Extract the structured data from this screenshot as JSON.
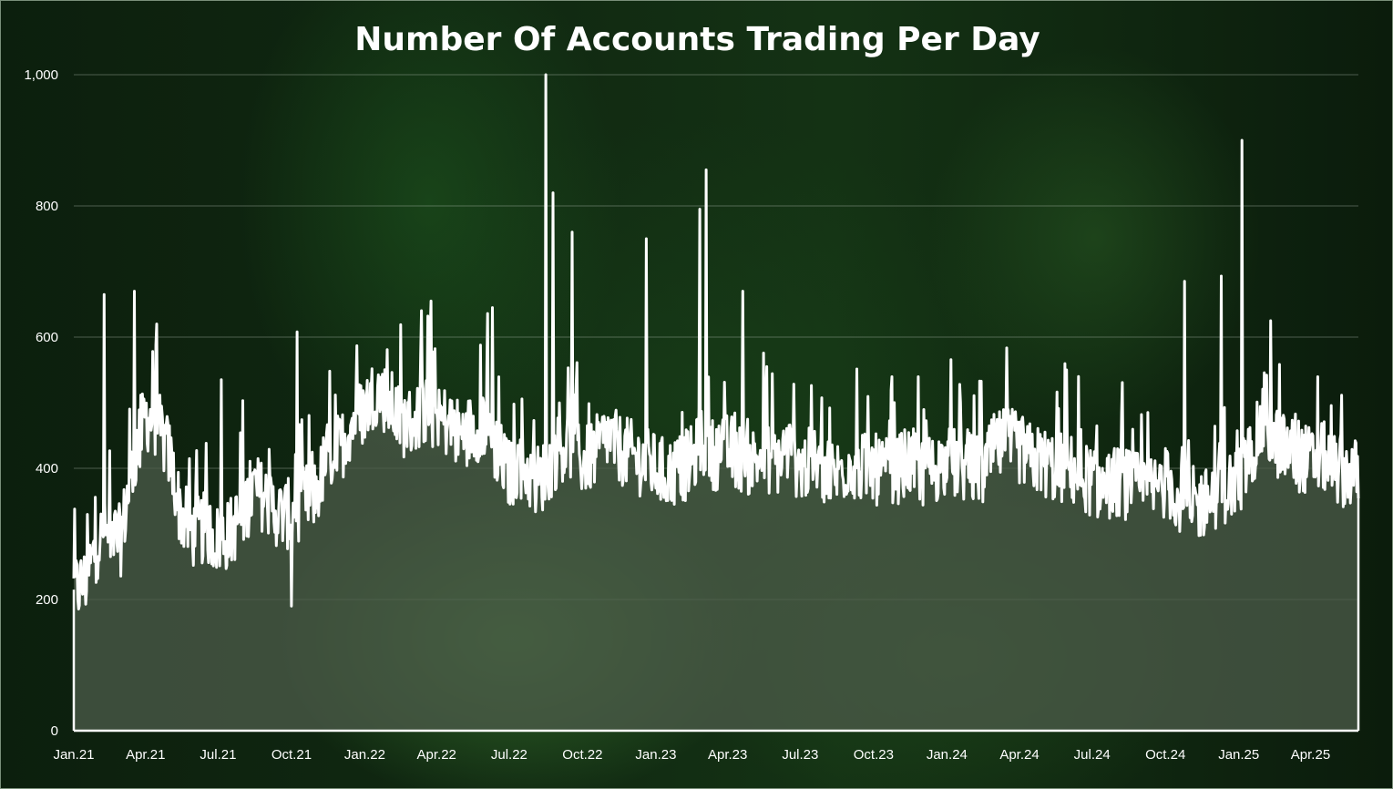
{
  "chart_data": {
    "type": "area",
    "title": "Number Of Accounts Trading Per Day",
    "xlabel": "",
    "ylabel": "",
    "ylim": [
      0,
      1000
    ],
    "yticks": [
      0,
      200,
      400,
      600,
      800,
      1000
    ],
    "ytick_labels": [
      "0",
      "200",
      "400",
      "600",
      "800",
      "1,000"
    ],
    "xlim": [
      "2021-01-01",
      "2025-05-31"
    ],
    "xticks": [
      "2021-01-01",
      "2021-04-01",
      "2021-07-01",
      "2021-10-01",
      "2022-01-01",
      "2022-04-01",
      "2022-07-01",
      "2022-10-01",
      "2023-01-01",
      "2023-04-01",
      "2023-07-01",
      "2023-10-01",
      "2024-01-01",
      "2024-04-01",
      "2024-07-01",
      "2024-10-01",
      "2025-01-01",
      "2025-04-01"
    ],
    "xtick_labels": [
      "Jan.21",
      "Apr.21",
      "Jul.21",
      "Oct.21",
      "Jan.22",
      "Apr.22",
      "Jul.22",
      "Oct.22",
      "Jan.23",
      "Apr.23",
      "Jul.23",
      "Oct.23",
      "Jan.24",
      "Apr.24",
      "Jul.24",
      "Oct.24",
      "Jan.25",
      "Apr.25"
    ],
    "grid": true,
    "legend": "none",
    "series_color": "#ffffff",
    "fill_color": "#4a5a48",
    "x": [
      "2021-01-01",
      "2021-01-15",
      "2021-02-01",
      "2021-02-15",
      "2021-03-01",
      "2021-03-15",
      "2021-04-01",
      "2021-04-15",
      "2021-05-01",
      "2021-05-15",
      "2021-06-01",
      "2021-06-15",
      "2021-07-01",
      "2021-07-15",
      "2021-08-01",
      "2021-08-15",
      "2021-09-01",
      "2021-09-15",
      "2021-10-01",
      "2021-10-15",
      "2021-11-01",
      "2021-11-15",
      "2021-12-01",
      "2021-12-15",
      "2022-01-01",
      "2022-01-15",
      "2022-02-01",
      "2022-02-15",
      "2022-03-01",
      "2022-03-15",
      "2022-04-01",
      "2022-04-15",
      "2022-05-01",
      "2022-05-15",
      "2022-06-01",
      "2022-06-15",
      "2022-07-01",
      "2022-07-15",
      "2022-08-01",
      "2022-08-15",
      "2022-09-01",
      "2022-09-15",
      "2022-10-01",
      "2022-10-15",
      "2022-11-01",
      "2022-11-15",
      "2022-12-01",
      "2022-12-15",
      "2023-01-01",
      "2023-01-15",
      "2023-02-01",
      "2023-02-15",
      "2023-03-01",
      "2023-03-15",
      "2023-04-01",
      "2023-04-15",
      "2023-05-01",
      "2023-05-15",
      "2023-06-01",
      "2023-06-15",
      "2023-07-01",
      "2023-07-15",
      "2023-08-01",
      "2023-08-15",
      "2023-09-01",
      "2023-09-15",
      "2023-10-01",
      "2023-10-15",
      "2023-11-01",
      "2023-11-15",
      "2023-12-01",
      "2023-12-15",
      "2024-01-01",
      "2024-01-15",
      "2024-02-01",
      "2024-02-15",
      "2024-03-01",
      "2024-03-15",
      "2024-04-01",
      "2024-04-15",
      "2024-05-01",
      "2024-05-15",
      "2024-06-01",
      "2024-06-15",
      "2024-07-01",
      "2024-07-15",
      "2024-08-01",
      "2024-08-15",
      "2024-09-01",
      "2024-09-15",
      "2024-10-01",
      "2024-10-15",
      "2024-11-01",
      "2024-11-15",
      "2024-12-01",
      "2024-12-15",
      "2025-01-01",
      "2025-01-15",
      "2025-02-01",
      "2025-02-15",
      "2025-03-01",
      "2025-03-15",
      "2025-04-01",
      "2025-04-15",
      "2025-05-01",
      "2025-05-15",
      "2025-05-31"
    ],
    "values": [
      215,
      225,
      290,
      300,
      290,
      400,
      480,
      470,
      420,
      330,
      300,
      310,
      290,
      300,
      330,
      370,
      350,
      330,
      330,
      350,
      360,
      420,
      430,
      470,
      490,
      520,
      500,
      470,
      470,
      490,
      480,
      470,
      450,
      460,
      470,
      430,
      390,
      410,
      380,
      390,
      430,
      440,
      410,
      420,
      450,
      430,
      420,
      410,
      400,
      390,
      400,
      410,
      440,
      420,
      430,
      420,
      410,
      420,
      410,
      430,
      400,
      410,
      400,
      390,
      410,
      400,
      400,
      390,
      400,
      410,
      395,
      400,
      410,
      405,
      400,
      395,
      430,
      440,
      430,
      415,
      410,
      400,
      400,
      390,
      380,
      370,
      380,
      375,
      370,
      365,
      380,
      360,
      340,
      345,
      360,
      370,
      380,
      420,
      470,
      440,
      430,
      420,
      410,
      420,
      400,
      395,
      390
    ],
    "spikes": [
      {
        "x": "2021-02-08",
        "y": 665
      },
      {
        "x": "2021-03-18",
        "y": 670
      },
      {
        "x": "2021-04-15",
        "y": 620
      },
      {
        "x": "2021-07-05",
        "y": 535
      },
      {
        "x": "2021-10-01",
        "y": 190
      },
      {
        "x": "2021-10-08",
        "y": 608
      },
      {
        "x": "2022-03-25",
        "y": 655
      },
      {
        "x": "2022-06-10",
        "y": 645
      },
      {
        "x": "2022-08-16",
        "y": 1000
      },
      {
        "x": "2022-08-25",
        "y": 820
      },
      {
        "x": "2022-09-18",
        "y": 760
      },
      {
        "x": "2022-12-20",
        "y": 750
      },
      {
        "x": "2023-02-25",
        "y": 795
      },
      {
        "x": "2023-03-05",
        "y": 855
      },
      {
        "x": "2023-04-20",
        "y": 670
      },
      {
        "x": "2024-10-25",
        "y": 685
      },
      {
        "x": "2024-12-10",
        "y": 693
      },
      {
        "x": "2025-01-05",
        "y": 900
      },
      {
        "x": "2025-02-10",
        "y": 625
      }
    ]
  }
}
